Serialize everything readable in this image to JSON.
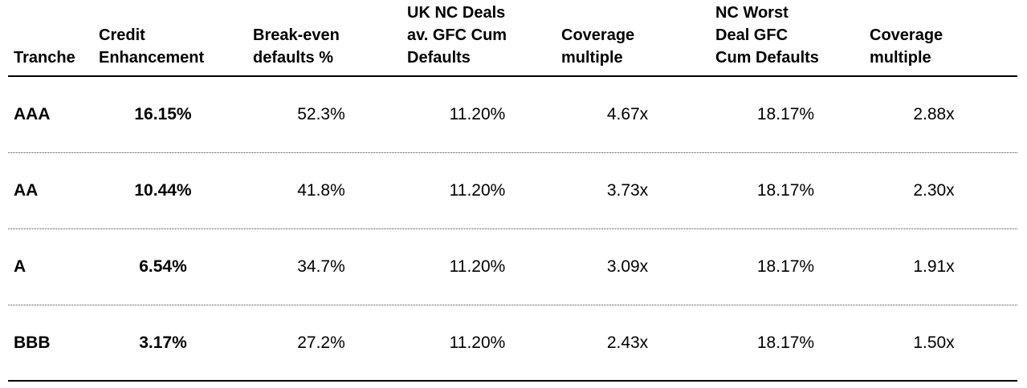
{
  "headers": {
    "tranche": "Tranche",
    "credit_enhancement": "Credit\nEnhancement",
    "break_even": "Break-even\ndefaults %",
    "uk_nc_deals": "UK NC Deals\nav. GFC Cum\nDefaults",
    "coverage_1": "Coverage\nmultiple",
    "nc_worst": "NC Worst\nDeal GFC\nCum Defaults",
    "coverage_2": "Coverage\nmultiple"
  },
  "rows": [
    {
      "tranche": "AAA",
      "credit_enhancement": "16.15%",
      "break_even": "52.3%",
      "uk_nc_deals": "11.20%",
      "coverage_1": "4.67x",
      "nc_worst": "18.17%",
      "coverage_2": "2.88x"
    },
    {
      "tranche": "AA",
      "credit_enhancement": "10.44%",
      "break_even": "41.8%",
      "uk_nc_deals": "11.20%",
      "coverage_1": "3.73x",
      "nc_worst": "18.17%",
      "coverage_2": "2.30x"
    },
    {
      "tranche": "A",
      "credit_enhancement": "6.54%",
      "break_even": "34.7%",
      "uk_nc_deals": "11.20%",
      "coverage_1": "3.09x",
      "nc_worst": "18.17%",
      "coverage_2": "1.91x"
    },
    {
      "tranche": "BBB",
      "credit_enhancement": "3.17%",
      "break_even": "27.2%",
      "uk_nc_deals": "11.20%",
      "coverage_1": "2.43x",
      "nc_worst": "18.17%",
      "coverage_2": "1.50x"
    }
  ]
}
